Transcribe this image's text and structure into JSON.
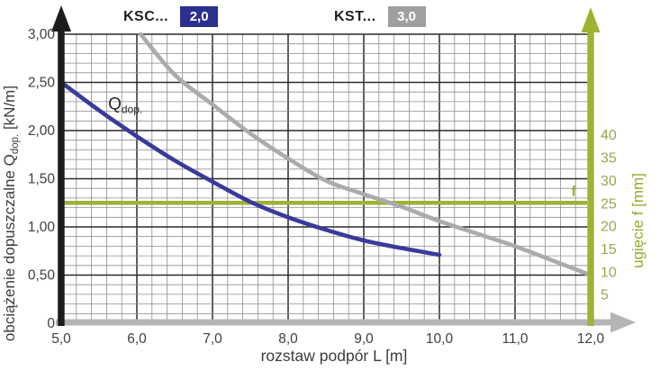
{
  "legend": {
    "items": [
      {
        "label": "KSC...",
        "badge": "2,0",
        "badge_color": "#2b2f90"
      },
      {
        "label": "KST...",
        "badge": "3,0",
        "badge_color": "#9f9f9f"
      }
    ]
  },
  "chart_data": {
    "type": "line",
    "xlabel": "rozstaw podpór L [m]",
    "ylabel_left": {
      "prefix": "obciążenie dopuszczalne Q",
      "sub": "dop.",
      "suffix": " [kN/m]"
    },
    "ylabel_right": "ugięcie f [mm]",
    "xlim": [
      5.0,
      12.0
    ],
    "ylim_left": [
      0,
      3.0
    ],
    "x_tick_values": [
      5,
      6,
      7,
      8,
      9,
      10,
      11,
      12
    ],
    "x_tick_labels": [
      "5,0",
      "6,0",
      "7,0",
      "8,0",
      "9,0",
      "10,0",
      "11,0",
      "12,0"
    ],
    "y_tick_values_left": [
      0,
      0.5,
      1.0,
      1.5,
      2.0,
      2.5,
      3.0
    ],
    "y_tick_labels_left": [
      "0",
      "0,50",
      "1,00",
      "1,50",
      "2,00",
      "2,50",
      "3,00"
    ],
    "y_tick_values_right": [
      5,
      10,
      15,
      20,
      25,
      30,
      35,
      40
    ],
    "y_tick_labels_right": [
      "5",
      "10",
      "15",
      "20",
      "25",
      "30",
      "35",
      "40"
    ],
    "grid": {
      "minor_x_step": 0.2,
      "minor_y_step": 0.1,
      "major_x_step": 1.0,
      "major_y_step": 0.5,
      "grid_on": true
    },
    "legend_position": "top",
    "series": [
      {
        "name": "KSC... 2,0",
        "color": "#3a3a9a",
        "points": [
          [
            5.0,
            2.5
          ],
          [
            5.5,
            2.21
          ],
          [
            6.0,
            1.94
          ],
          [
            6.5,
            1.69
          ],
          [
            7.0,
            1.47
          ],
          [
            7.5,
            1.26
          ],
          [
            8.0,
            1.1
          ],
          [
            8.5,
            0.97
          ],
          [
            9.0,
            0.86
          ],
          [
            9.5,
            0.78
          ],
          [
            10.0,
            0.71
          ]
        ]
      },
      {
        "name": "KST... 3,0",
        "color": "#ababab",
        "points": [
          [
            6.05,
            3.0
          ],
          [
            6.5,
            2.58
          ],
          [
            7.0,
            2.27
          ],
          [
            7.5,
            1.97
          ],
          [
            8.0,
            1.71
          ],
          [
            8.5,
            1.48
          ],
          [
            9.0,
            1.34
          ],
          [
            9.5,
            1.21
          ],
          [
            10.0,
            1.06
          ],
          [
            10.5,
            0.93
          ],
          [
            11.0,
            0.8
          ],
          [
            11.5,
            0.65
          ],
          [
            12.0,
            0.5
          ]
        ]
      }
    ],
    "reference_line": {
      "label": "f",
      "value_left": 1.25,
      "value_right_mm": 25,
      "color": "#9cb334"
    },
    "annotation": {
      "prefix": "Q",
      "sub": "dop.",
      "x": 5.62,
      "y": 2.22
    },
    "colors": {
      "grid_minor": "#8e8e8e",
      "grid_major": "#2a2a2a",
      "axis_left": "#1c1c1c",
      "axis_bottom": "#b4b4b4",
      "axis_right": "#9cb334",
      "tick_text": "#3f3f3f",
      "axis_title_text": "#3c3c3c",
      "right_tick_text": "#9aa553",
      "right_title_text": "#8fae2c",
      "annotation_text": "#2b2b2b"
    }
  }
}
